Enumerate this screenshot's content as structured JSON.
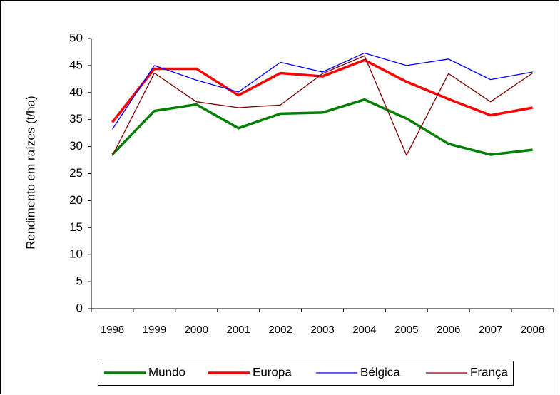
{
  "chart_data": {
    "type": "line",
    "y_label": "Rendimento em raízes  (t/ha)",
    "categories": [
      "1998",
      "1999",
      "2000",
      "2001",
      "2002",
      "2003",
      "2004",
      "2005",
      "2006",
      "2007",
      "2008"
    ],
    "series": [
      {
        "name": "Mundo",
        "color": "#008000",
        "width": 3.5,
        "values": [
          28.5,
          36.6,
          37.8,
          33.4,
          36.1,
          36.3,
          38.7,
          35.2,
          30.5,
          28.5,
          29.4
        ]
      },
      {
        "name": "Europa",
        "color": "#ff0000",
        "width": 3.5,
        "values": [
          34.5,
          44.4,
          44.4,
          39.5,
          43.6,
          43.0,
          46.0,
          42.0,
          38.8,
          35.8,
          37.2
        ]
      },
      {
        "name": "Bélgica",
        "color": "#0000ff",
        "width": 1.3,
        "values": [
          33.2,
          45.0,
          42.3,
          40.1,
          45.6,
          43.8,
          47.3,
          45.0,
          46.2,
          42.4,
          43.8
        ]
      },
      {
        "name": "França",
        "color": "#800000",
        "width": 1.3,
        "values": [
          28.3,
          43.6,
          38.3,
          37.2,
          37.7,
          43.5,
          46.8,
          28.4,
          43.5,
          38.3,
          43.6
        ]
      }
    ],
    "ylim": [
      0,
      50
    ],
    "yticks": [
      0,
      5,
      10,
      15,
      20,
      25,
      30,
      35,
      40,
      45,
      50
    ],
    "grid": false,
    "legend": "bottom"
  }
}
